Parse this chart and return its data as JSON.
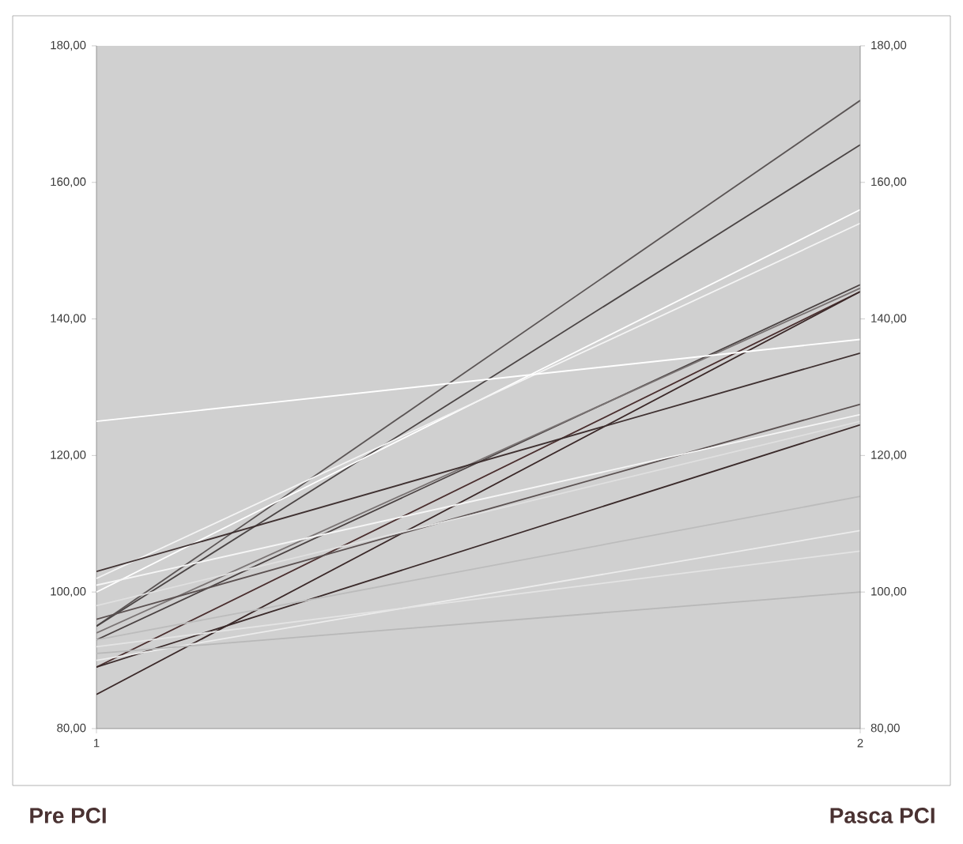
{
  "chart_data": {
    "type": "line",
    "x": [
      1,
      2
    ],
    "xlim": [
      1,
      2
    ],
    "xticks": [
      1,
      2
    ],
    "ylim": [
      80,
      180
    ],
    "yticks": [
      {
        "value": 80,
        "label": "80,00"
      },
      {
        "value": 100,
        "label": "100,00"
      },
      {
        "value": 120,
        "label": "120,00"
      },
      {
        "value": 140,
        "label": "140,00"
      },
      {
        "value": 160,
        "label": "160,00"
      },
      {
        "value": 180,
        "label": "180,00"
      }
    ],
    "y2lim": [
      80,
      180
    ],
    "y2ticks": [
      {
        "value": 80,
        "label": "80,00"
      },
      {
        "value": 100,
        "label": "100,00"
      },
      {
        "value": 120,
        "label": "120,00"
      },
      {
        "value": 140,
        "label": "140,00"
      },
      {
        "value": 160,
        "label": "160,00"
      },
      {
        "value": 180,
        "label": "180,00"
      }
    ],
    "annotations": [
      "Pre PCI",
      "Pasca PCI"
    ],
    "series": [
      {
        "color": "#5a5454",
        "values": [
          95,
          172
        ]
      },
      {
        "color": "#4a4444",
        "values": [
          95,
          165.5
        ]
      },
      {
        "color": "#ffffff",
        "values": [
          100,
          156
        ]
      },
      {
        "color": "#f4f4f4",
        "values": [
          102,
          154
        ]
      },
      {
        "color": "#4a4242",
        "values": [
          93,
          145
        ]
      },
      {
        "color": "#4a2e2e",
        "values": [
          89,
          144
        ]
      },
      {
        "color": "#3a2828",
        "values": [
          85,
          144
        ]
      },
      {
        "color": "#7a7474",
        "values": [
          94,
          144.5
        ]
      },
      {
        "color": "#ffffff",
        "values": [
          125,
          137
        ]
      },
      {
        "color": "#3e3030",
        "values": [
          103,
          135
        ]
      },
      {
        "color": "#5a5050",
        "values": [
          96,
          127.5
        ]
      },
      {
        "color": "#f6f6f6",
        "values": [
          101,
          126
        ]
      },
      {
        "color": "#e0e0e0",
        "values": [
          98,
          125
        ]
      },
      {
        "color": "#3a2a2a",
        "values": [
          89,
          124.5
        ]
      },
      {
        "color": "#bcbcbc",
        "values": [
          93,
          114
        ]
      },
      {
        "color": "#ececec",
        "values": [
          90,
          109
        ]
      },
      {
        "color": "#e4e4e4",
        "values": [
          92,
          106
        ]
      },
      {
        "color": "#b8b8b8",
        "values": [
          91,
          100
        ]
      }
    ]
  }
}
